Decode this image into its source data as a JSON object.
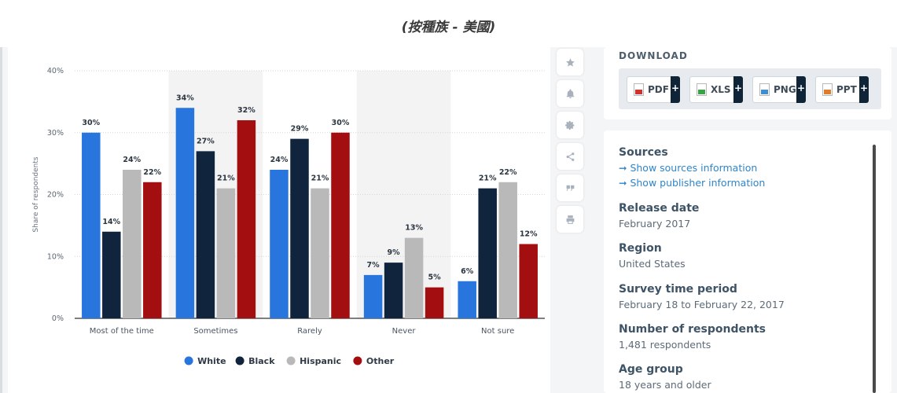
{
  "page": {
    "subtitle": "(按種族 - 美國)"
  },
  "toolbar": {
    "icons": [
      "star-icon",
      "bell-icon",
      "gear-icon",
      "share-icon",
      "quote-icon",
      "print-icon"
    ]
  },
  "download": {
    "title": "DOWNLOAD",
    "buttons": [
      {
        "label": "PDF",
        "plus": "+",
        "color": "#d0312d"
      },
      {
        "label": "XLS",
        "plus": "+",
        "color": "#3aa348"
      },
      {
        "label": "PNG",
        "plus": "+",
        "color": "#3e8ed0"
      },
      {
        "label": "PPT",
        "plus": "+",
        "color": "#e07b2c"
      }
    ]
  },
  "info": {
    "sources_head": "Sources",
    "sources_link": "➞ Show sources information",
    "publisher_link": "➞ Show publisher information",
    "release_head": "Release date",
    "release_val": "February 2017",
    "region_head": "Region",
    "region_val": "United States",
    "survey_head": "Survey time period",
    "survey_val": "February 18 to February 22, 2017",
    "respondents_head": "Number of respondents",
    "respondents_val": "1,481 respondents",
    "age_head": "Age group",
    "age_val": "18 years and older"
  },
  "chart_data": {
    "type": "bar",
    "title": "",
    "xlabel": "",
    "ylabel": "Share of respondents",
    "ylim": [
      0,
      40
    ],
    "yticks": [
      "0%",
      "10%",
      "20%",
      "30%",
      "40%"
    ],
    "grid": true,
    "legend_position": "bottom",
    "categories": [
      "Most of the time",
      "Sometimes",
      "Rarely",
      "Never",
      "Not sure"
    ],
    "series": [
      {
        "name": "White",
        "color": "#2876dd",
        "values": [
          30,
          34,
          24,
          7,
          6
        ]
      },
      {
        "name": "Black",
        "color": "#10253d",
        "values": [
          14,
          27,
          29,
          9,
          21
        ]
      },
      {
        "name": "Hispanic",
        "color": "#b9b9b9",
        "values": [
          24,
          21,
          21,
          13,
          22
        ]
      },
      {
        "name": "Other",
        "color": "#a30e10",
        "values": [
          22,
          32,
          30,
          5,
          12
        ]
      }
    ],
    "value_suffix": "%"
  }
}
